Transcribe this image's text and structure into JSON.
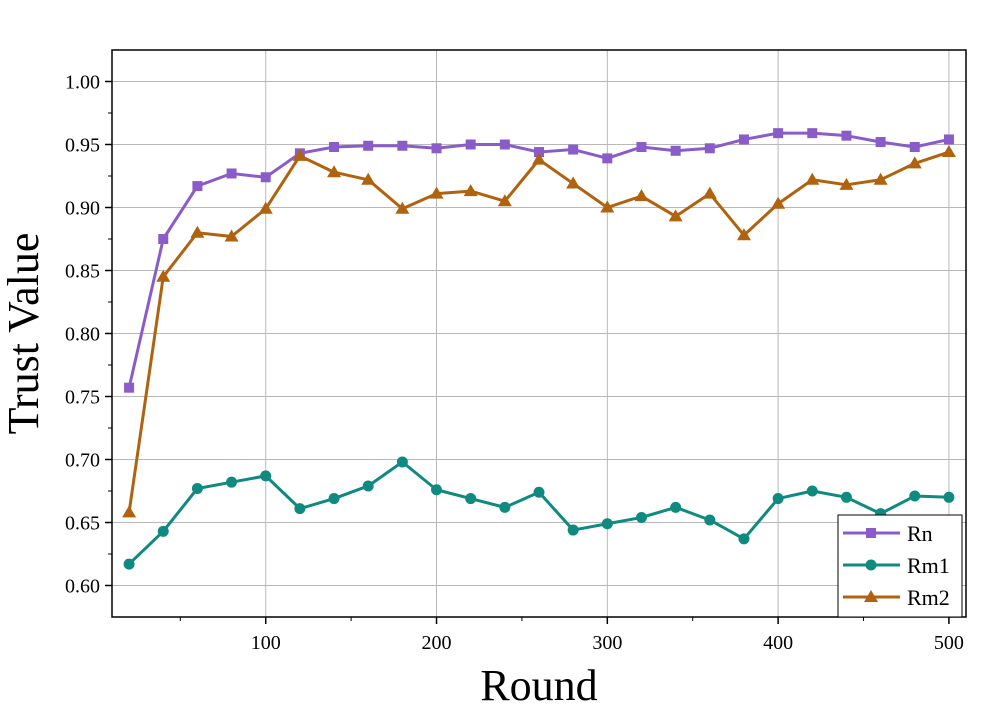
{
  "chart_data": {
    "type": "line",
    "title": "",
    "xlabel": "Round",
    "ylabel": "Trust Value",
    "xlim": [
      10,
      510
    ],
    "ylim": [
      0.575,
      1.025
    ],
    "xticks": [
      100,
      200,
      300,
      400,
      500
    ],
    "xtick_labels": [
      "100",
      "200",
      "300",
      "400",
      "500"
    ],
    "yticks": [
      0.6,
      0.65,
      0.7,
      0.75,
      0.8,
      0.85,
      0.9,
      0.95,
      1.0
    ],
    "ytick_labels": [
      "0.60",
      "0.65",
      "0.70",
      "0.75",
      "0.80",
      "0.85",
      "0.90",
      "0.95",
      "1.00"
    ],
    "grid": true,
    "legend_position": "bottom-right",
    "x": [
      20,
      40,
      60,
      80,
      100,
      120,
      140,
      160,
      180,
      200,
      220,
      240,
      260,
      280,
      300,
      320,
      340,
      360,
      380,
      400,
      420,
      440,
      460,
      480,
      500
    ],
    "series": [
      {
        "name": "Rn",
        "color": "#8a5cc9",
        "marker": "square",
        "values": [
          0.757,
          0.875,
          0.917,
          0.927,
          0.924,
          0.943,
          0.948,
          0.949,
          0.949,
          0.947,
          0.95,
          0.95,
          0.944,
          0.946,
          0.939,
          0.948,
          0.945,
          0.947,
          0.954,
          0.959,
          0.959,
          0.957,
          0.952,
          0.948,
          0.954
        ]
      },
      {
        "name": "Rm1",
        "color": "#0f8a80",
        "marker": "circle",
        "values": [
          0.617,
          0.643,
          0.677,
          0.682,
          0.687,
          0.661,
          0.669,
          0.679,
          0.698,
          0.676,
          0.669,
          0.662,
          0.674,
          0.644,
          0.649,
          0.654,
          0.662,
          0.652,
          0.637,
          0.669,
          0.675,
          0.67,
          0.657,
          0.671,
          0.67
        ]
      },
      {
        "name": "Rm2",
        "color": "#b0620f",
        "marker": "triangle",
        "values": [
          0.658,
          0.845,
          0.88,
          0.877,
          0.899,
          0.941,
          0.928,
          0.922,
          0.899,
          0.911,
          0.913,
          0.905,
          0.938,
          0.919,
          0.9,
          0.909,
          0.893,
          0.911,
          0.878,
          0.903,
          0.922,
          0.918,
          0.922,
          0.935,
          0.944
        ]
      }
    ]
  }
}
